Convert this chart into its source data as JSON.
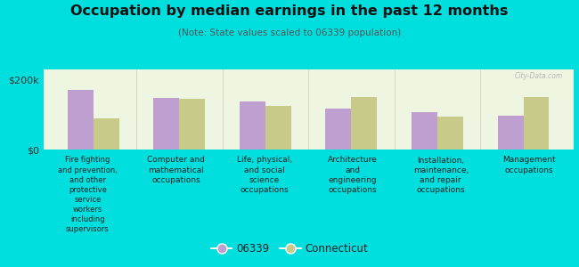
{
  "title": "Occupation by median earnings in the past 12 months",
  "subtitle": "(Note: State values scaled to 06339 population)",
  "categories": [
    "Fire fighting\nand prevention,\nand other\nprotective\nservice\nworkers\nincluding\nsupervisors",
    "Computer and\nmathematical\noccupations",
    "Life, physical,\nand social\nscience\noccupations",
    "Architecture\nand\nengineering\noccupations",
    "Installation,\nmaintenance,\nand repair\noccupations",
    "Management\noccupations"
  ],
  "values_06339": [
    170000,
    148000,
    138000,
    118000,
    108000,
    98000
  ],
  "values_ct": [
    90000,
    145000,
    125000,
    152000,
    95000,
    152000
  ],
  "ylim": [
    0,
    230000
  ],
  "yticks": [
    0,
    200000
  ],
  "ytick_labels": [
    "$0",
    "$200k"
  ],
  "color_06339": "#bf9fd0",
  "color_ct": "#c8ca8a",
  "background_color": "#00dede",
  "plot_bg_color": "#eef5e0",
  "bar_width": 0.3,
  "legend_06339": "06339",
  "legend_ct": "Connecticut",
  "watermark": "City-Data.com"
}
